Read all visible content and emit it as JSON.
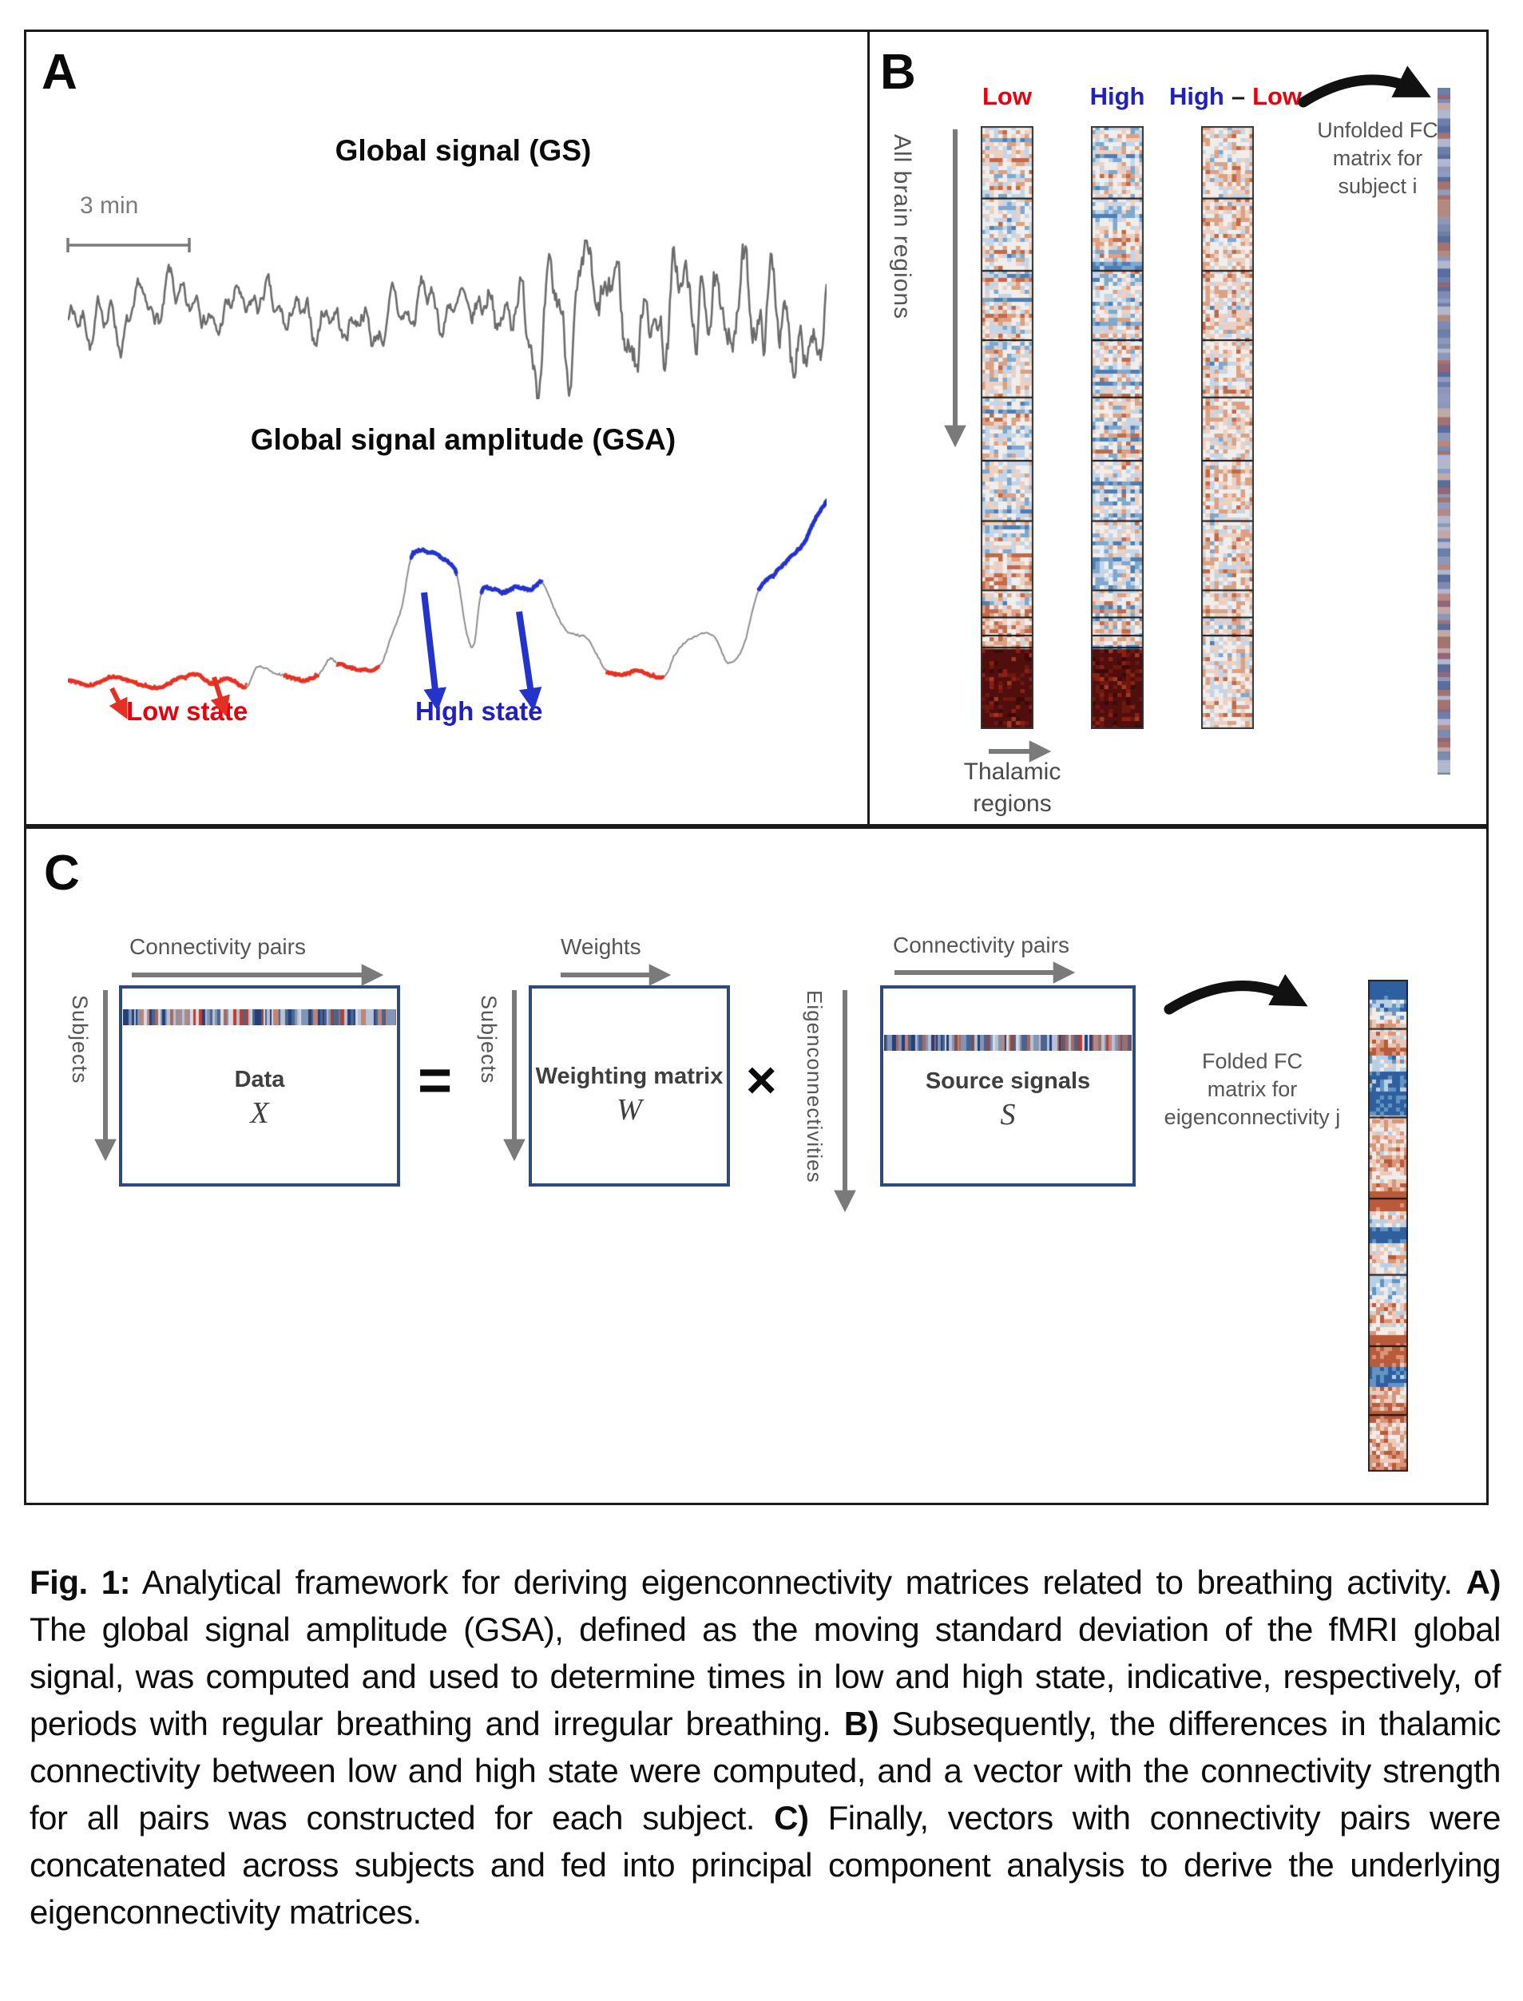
{
  "panelA": {
    "label": "A",
    "gs_title": "Global signal (GS)",
    "scalebar_label": "3 min",
    "gsa_title": "Global signal amplitude (GSA)",
    "low_state": "Low state",
    "high_state": "High state"
  },
  "panelB": {
    "label": "B",
    "col_low": "Low",
    "col_high": "High",
    "diff_high": "High",
    "diff_dash": "–",
    "diff_low": "Low",
    "y_axis_label": "All brain regions",
    "x_axis_line1": "Thalamic",
    "x_axis_line2": "regions",
    "unfolded_note": [
      "Unfolded FC",
      "matrix for",
      "subject i"
    ]
  },
  "panelC": {
    "label": "C",
    "conn_pairs_label_1": "Connectivity pairs",
    "subjects_label_1": "Subjects",
    "data_title": "Data",
    "data_symbol": "X",
    "equals": "=",
    "subjects_label_2": "Subjects",
    "weights_label": "Weights",
    "weighting_title": "Weighting matrix",
    "weighting_symbol": "W",
    "times": "×",
    "eigen_label": "Eigenconnectivities",
    "conn_pairs_label_2": "Connectivity pairs",
    "source_title": "Source signals",
    "source_symbol": "S",
    "folded_note": [
      "Folded FC",
      "matrix for",
      "eigenconnectivity j"
    ]
  },
  "caption": {
    "runs": [
      {
        "b": "Fig. 1:"
      },
      {
        "t": " Analytical framework for deriving eigenconnectivity matrices related to breathing activity. "
      },
      {
        "b": "A)"
      },
      {
        "t": " The global signal amplitude (GSA), defined as the moving standard deviation of the fMRI global signal, was computed and used to determine times in low and high state, indicative, respectively, of periods with regular breathing and irregular breathing. "
      },
      {
        "b": "B)"
      },
      {
        "t": " Subsequently, the differences in thalamic connectivity between low and high state were computed, and a vector with the connectivity strength for all pairs was constructed for each subject. "
      },
      {
        "b": "C)"
      },
      {
        "t": " Finally, vectors with connectivity pairs were concatenated across subjects and fed into principal component analysis to derive the underlying eigenconnectivity matrices."
      }
    ]
  },
  "colors": {
    "state_low_red": "#e8000d",
    "state_high_blue": "#2020c0",
    "matrix_border_blue": "#2e4a78",
    "muted_text": "#555555",
    "waveform_gray": "#6b6b6b",
    "box_border": "#1a1a1a"
  },
  "graphics": {
    "gs": {
      "seed": 7,
      "color": "#6b6b6b"
    },
    "gsa": {
      "gray": "#8f8f8f",
      "red": "#e53225",
      "blue": "#2433cc",
      "seed": 13,
      "keypoints": [
        [
          0,
          252
        ],
        [
          0.03,
          258
        ],
        [
          0.06,
          248
        ],
        [
          0.09,
          256
        ],
        [
          0.12,
          262
        ],
        [
          0.145,
          250
        ],
        [
          0.17,
          245
        ],
        [
          0.19,
          256
        ],
        [
          0.21,
          250
        ],
        [
          0.235,
          260
        ],
        [
          0.25,
          235
        ],
        [
          0.27,
          242
        ],
        [
          0.285,
          246
        ],
        [
          0.31,
          252
        ],
        [
          0.33,
          245
        ],
        [
          0.345,
          225
        ],
        [
          0.355,
          230
        ],
        [
          0.38,
          238
        ],
        [
          0.41,
          235
        ],
        [
          0.425,
          200
        ],
        [
          0.44,
          160
        ],
        [
          0.452,
          100
        ],
        [
          0.465,
          90
        ],
        [
          0.48,
          92
        ],
        [
          0.495,
          100
        ],
        [
          0.512,
          118
        ],
        [
          0.525,
          190
        ],
        [
          0.535,
          208
        ],
        [
          0.545,
          142
        ],
        [
          0.56,
          138
        ],
        [
          0.575,
          142
        ],
        [
          0.59,
          135
        ],
        [
          0.61,
          138
        ],
        [
          0.625,
          130
        ],
        [
          0.64,
          160
        ],
        [
          0.655,
          188
        ],
        [
          0.67,
          195
        ],
        [
          0.685,
          200
        ],
        [
          0.7,
          225
        ],
        [
          0.71,
          240
        ],
        [
          0.73,
          245
        ],
        [
          0.75,
          240
        ],
        [
          0.785,
          248
        ],
        [
          0.8,
          220
        ],
        [
          0.82,
          200
        ],
        [
          0.85,
          195
        ],
        [
          0.87,
          230
        ],
        [
          0.89,
          210
        ],
        [
          0.91,
          140
        ],
        [
          0.93,
          120
        ],
        [
          0.95,
          100
        ],
        [
          0.97,
          80
        ],
        [
          0.985,
          50
        ],
        [
          1,
          28
        ]
      ],
      "red_segments": [
        [
          0,
          0.235
        ],
        [
          0.285,
          0.33
        ],
        [
          0.355,
          0.41
        ],
        [
          0.71,
          0.785
        ]
      ],
      "blue_segments": [
        [
          0.452,
          0.512
        ],
        [
          0.545,
          0.625
        ],
        [
          0.91,
          1
        ]
      ]
    },
    "heat": {
      "dividers": [
        0.12,
        0.24,
        0.355,
        0.45,
        0.555,
        0.655,
        0.77,
        0.815,
        0.845,
        0.865
      ],
      "dark_start": 0.865,
      "palette": [
        "#4d7fb5",
        "#7fa8cc",
        "#c3d5e6",
        "#f0eeec",
        "#ecd0c2",
        "#dba183",
        "#c06a4a"
      ],
      "dark_palette": [
        "#3b0a09",
        "#500e0c",
        "#6e1710",
        "#8a2015",
        "#a03a22"
      ],
      "cols": [
        {
          "seed": 11,
          "mode": "lowhigh"
        },
        {
          "seed": 23,
          "mode": "lowhigh"
        },
        {
          "seed": 37,
          "mode": "diff"
        }
      ]
    },
    "unfolded": {
      "seed": 5,
      "colors": [
        "#5a6d9c",
        "#8d97ba",
        "#b0b7cf",
        "#a3736f",
        "#c2a8a6",
        "#7d8bb0",
        "#93667a",
        "#6d7fa8",
        "#b5897f",
        "#8f9bc0"
      ]
    },
    "folded": {
      "seed": 19,
      "dividers": [
        0.1,
        0.28,
        0.445,
        0.6,
        0.745,
        0.885
      ],
      "palette": [
        "#2e5f9e",
        "#6394c4",
        "#b9d0e4",
        "#f0ece9",
        "#eccabb",
        "#d89577",
        "#b95a3a"
      ],
      "bands": [
        [
          0.035,
          -2.2
        ],
        [
          0.08,
          -0.5
        ],
        [
          0.13,
          0.4
        ],
        [
          0.15,
          1.6
        ],
        [
          0.18,
          -0.4
        ],
        [
          0.27,
          -1.6
        ],
        [
          0.31,
          0.3
        ],
        [
          0.43,
          0.6
        ],
        [
          0.47,
          1.9
        ],
        [
          0.5,
          0.1
        ],
        [
          0.535,
          -1.8
        ],
        [
          0.6,
          0.3
        ],
        [
          0.65,
          -0.5
        ],
        [
          0.72,
          0.4
        ],
        [
          0.78,
          1.6
        ],
        [
          0.82,
          -1.1
        ],
        [
          0.86,
          0.5
        ],
        [
          0.9,
          1.3
        ],
        [
          0.955,
          0.5
        ],
        [
          1,
          1.1
        ]
      ]
    },
    "rowstrip": {
      "seeds": [
        3,
        29
      ]
    }
  }
}
